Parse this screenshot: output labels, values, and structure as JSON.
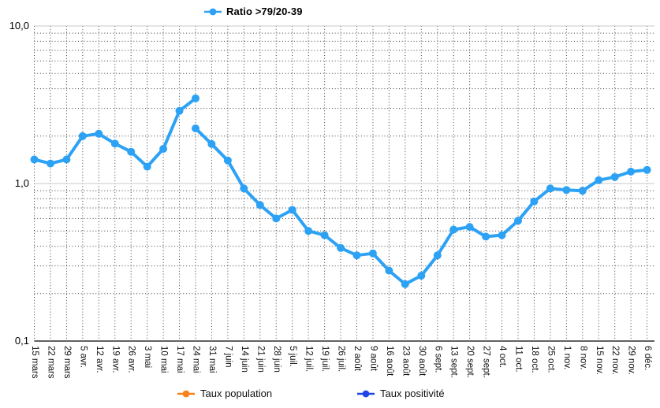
{
  "chart_data": {
    "type": "line",
    "title": "",
    "y_scale": "log",
    "ylim": [
      0.1,
      10
    ],
    "y_ticks": [
      10,
      1,
      0.1
    ],
    "y_tick_labels": [
      "10,0",
      "1,0",
      "0,1"
    ],
    "grid": "dotted log minor gridlines, solid lines at decades",
    "legend_position": "top and bottom",
    "categories": [
      "15 mars",
      "22 mars",
      "29 mars",
      "5 avr.",
      "12 avr.",
      "19 avr.",
      "26 avr.",
      "3 mai",
      "10 mai",
      "17 mai",
      "24 mai",
      "31 mai",
      "7 juin",
      "14 juin",
      "21 juin",
      "28 juin",
      "5 juil.",
      "12 juil.",
      "19 juil.",
      "26 juil.",
      "2 août",
      "9 août",
      "16 août",
      "23 août",
      "30 août",
      "6 sept.",
      "13 sept.",
      "20 sept.",
      "27 sept.",
      "4 oct.",
      "11 oct.",
      "18 oct.",
      "25 oct.",
      "1 nov.",
      "8 nov.",
      "15 nov.",
      "22 nov.",
      "29 nov.",
      "6 déc."
    ],
    "series": [
      {
        "name": "Ratio >79/20-39",
        "color": "#2da2f5",
        "segments": [
          {
            "start_index": 0,
            "values": [
              1.42,
              1.34,
              1.42,
              2.0,
              2.07,
              1.79,
              1.59,
              1.28,
              1.66,
              2.89,
              3.47
            ]
          },
          {
            "start_index": 10,
            "values": [
              2.24,
              1.78,
              1.4,
              0.93,
              0.73,
              0.6,
              0.68,
              0.5,
              0.47,
              0.39,
              0.35,
              0.36,
              0.28,
              0.23,
              0.26,
              0.35,
              0.51,
              0.53,
              0.46,
              0.47,
              0.58,
              0.77,
              0.93,
              0.91,
              0.9,
              1.05,
              1.1,
              1.19,
              1.22
            ]
          }
        ]
      },
      {
        "name": "Taux population",
        "color": "#f6821f",
        "segments": []
      },
      {
        "name": "Taux positivité",
        "color": "#1f45e6",
        "segments": []
      }
    ]
  },
  "colors": {
    "grid_minor": "#3d3d3d",
    "grid_major": "#c8c8c8",
    "axis_line": "#2f2f2f"
  }
}
